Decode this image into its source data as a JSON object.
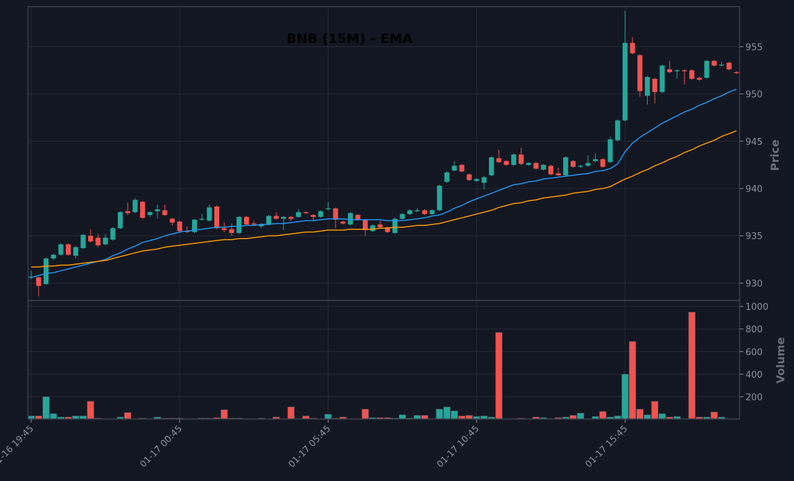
{
  "chart_data": [
    {
      "type": "candlestick",
      "title": "BNB (15M) - EMA",
      "ylabel": "Price",
      "up_color": "#26a69a",
      "down_color": "#ef5350",
      "grid": true,
      "x": [
        "01-16 19:45",
        "01-16 20:00",
        "01-16 20:15",
        "01-16 20:30",
        "01-16 20:45",
        "01-16 21:00",
        "01-16 21:15",
        "01-16 21:30",
        "01-16 21:45",
        "01-16 22:00",
        "01-16 22:15",
        "01-16 22:30",
        "01-16 22:45",
        "01-16 23:00",
        "01-16 23:15",
        "01-16 23:30",
        "01-16 23:45",
        "01-17 00:00",
        "01-17 00:15",
        "01-17 00:30",
        "01-17 00:45",
        "01-17 01:00",
        "01-17 01:15",
        "01-17 01:30",
        "01-17 01:45",
        "01-17 02:00",
        "01-17 02:15",
        "01-17 02:30",
        "01-17 02:45",
        "01-17 03:00",
        "01-17 03:15",
        "01-17 03:30",
        "01-17 03:45",
        "01-17 04:00",
        "01-17 04:15",
        "01-17 04:30",
        "01-17 04:45",
        "01-17 05:00",
        "01-17 05:15",
        "01-17 05:30",
        "01-17 05:45",
        "01-17 06:00",
        "01-17 06:15",
        "01-17 06:30",
        "01-17 06:45",
        "01-17 07:00",
        "01-17 07:15",
        "01-17 07:30",
        "01-17 07:45",
        "01-17 08:00",
        "01-17 08:15",
        "01-17 08:30",
        "01-17 08:45",
        "01-17 09:00",
        "01-17 09:15",
        "01-17 09:30",
        "01-17 09:45",
        "01-17 10:00",
        "01-17 10:15",
        "01-17 10:30",
        "01-17 10:45",
        "01-17 11:00",
        "01-17 11:15",
        "01-17 11:30",
        "01-17 11:45",
        "01-17 12:00",
        "01-17 12:15",
        "01-17 12:30",
        "01-17 12:45",
        "01-17 13:00",
        "01-17 13:15",
        "01-17 13:30",
        "01-17 13:45",
        "01-17 14:00",
        "01-17 14:15",
        "01-17 14:30",
        "01-17 14:45",
        "01-17 15:00",
        "01-17 15:15",
        "01-17 15:30",
        "01-17 15:45",
        "01-17 16:00",
        "01-17 16:15",
        "01-17 16:30",
        "01-17 16:45",
        "01-17 17:00",
        "01-17 17:15",
        "01-17 17:30",
        "01-17 17:45",
        "01-17 18:00",
        "01-17 18:15",
        "01-17 18:30",
        "01-17 18:45",
        "01-17 19:00",
        "01-17 19:15",
        "01-17 19:30"
      ],
      "open": [
        930.6,
        930.6,
        929.9,
        932.6,
        933.0,
        934.1,
        932.9,
        933.7,
        935.0,
        934.8,
        934.1,
        934.6,
        935.8,
        937.6,
        937.5,
        938.6,
        937.2,
        937.6,
        937.7,
        936.8,
        936.5,
        935.5,
        935.4,
        936.7,
        936.6,
        938.1,
        935.8,
        935.7,
        935.3,
        937.0,
        936.3,
        936.0,
        936.2,
        937.1,
        936.8,
        937.0,
        937.0,
        937.5,
        937.2,
        937.0,
        937.8,
        937.9,
        936.5,
        936.2,
        937.2,
        936.7,
        935.5,
        936.2,
        935.9,
        935.3,
        936.8,
        937.3,
        937.6,
        937.7,
        937.3,
        937.7,
        940.7,
        941.9,
        942.5,
        941.5,
        940.8,
        940.6,
        941.4,
        943.2,
        942.9,
        942.5,
        943.6,
        942.5,
        942.7,
        942.0,
        942.4,
        941.6,
        941.4,
        942.9,
        942.3,
        942.4,
        942.9,
        943.1,
        942.8,
        945.1,
        947.2,
        955.4,
        954.1,
        949.8,
        951.6,
        950.2,
        952.6,
        952.4,
        952.5,
        952.5,
        951.7,
        951.7,
        953.5,
        953.0,
        953.3,
        952.3
      ],
      "high": [
        931.3,
        930.7,
        932.7,
        933.1,
        934.2,
        934.2,
        933.9,
        935.2,
        935.7,
        935.2,
        935.2,
        935.9,
        937.6,
        938.5,
        939.0,
        938.7,
        937.6,
        938.3,
        938.3,
        936.9,
        936.6,
        936.0,
        936.8,
        937.3,
        938.3,
        938.2,
        936.4,
        936.3,
        937.1,
        937.1,
        936.6,
        936.3,
        937.2,
        937.5,
        937.1,
        937.1,
        937.8,
        937.6,
        937.3,
        937.7,
        938.6,
        938.0,
        936.6,
        937.5,
        937.3,
        936.8,
        936.2,
        936.6,
        936.0,
        936.9,
        937.4,
        937.8,
        937.9,
        937.8,
        937.8,
        940.4,
        941.8,
        942.9,
        942.6,
        941.6,
        941.1,
        941.3,
        943.4,
        944.1,
        943.0,
        943.7,
        944.3,
        942.8,
        942.8,
        942.6,
        942.5,
        942.2,
        943.4,
        943.0,
        942.5,
        943.5,
        943.7,
        943.2,
        945.5,
        947.3,
        958.8,
        956.0,
        954.2,
        951.9,
        951.7,
        953.1,
        953.5,
        952.6,
        952.6,
        952.6,
        951.8,
        953.6,
        953.6,
        953.4,
        953.4,
        952.4
      ],
      "low": [
        930.4,
        928.6,
        929.8,
        932.4,
        932.9,
        932.9,
        932.6,
        933.6,
        934.3,
        933.8,
        934.0,
        934.5,
        935.7,
        937.2,
        937.4,
        936.8,
        937.0,
        936.8,
        937.1,
        936.1,
        935.4,
        935.3,
        935.3,
        936.6,
        936.5,
        935.7,
        935.4,
        935.0,
        935.2,
        936.1,
        936.1,
        935.8,
        936.1,
        936.7,
        935.6,
        936.6,
        936.9,
        937.3,
        936.6,
        936.9,
        937.7,
        935.8,
        936.2,
        936.1,
        936.6,
        935.0,
        935.4,
        935.8,
        935.3,
        935.2,
        936.7,
        937.2,
        937.5,
        937.2,
        937.2,
        937.6,
        940.6,
        941.8,
        941.7,
        940.8,
        940.7,
        939.9,
        941.3,
        942.7,
        942.4,
        942.4,
        942.5,
        942.4,
        942.0,
        941.9,
        941.4,
        941.3,
        941.3,
        942.2,
        942.2,
        942.3,
        942.8,
        942.2,
        942.7,
        945.0,
        947.1,
        954.2,
        949.7,
        948.9,
        949.0,
        950.1,
        952.2,
        951.6,
        951.0,
        951.5,
        951.4,
        951.6,
        952.9,
        952.9,
        952.5,
        952.1
      ],
      "close": [
        930.7,
        929.7,
        932.6,
        933.0,
        934.1,
        933.0,
        933.8,
        935.1,
        934.4,
        934.0,
        934.8,
        935.8,
        937.5,
        937.4,
        938.8,
        936.9,
        937.5,
        937.8,
        937.2,
        936.4,
        935.5,
        935.4,
        936.7,
        936.8,
        938.0,
        935.8,
        935.6,
        935.3,
        937.0,
        936.2,
        936.2,
        936.2,
        937.1,
        936.8,
        937.0,
        936.8,
        937.5,
        937.4,
        937.0,
        937.6,
        937.9,
        936.7,
        936.3,
        937.4,
        936.7,
        935.6,
        936.1,
        935.9,
        935.4,
        936.8,
        937.3,
        937.7,
        937.7,
        937.3,
        937.7,
        940.3,
        941.7,
        942.4,
        941.8,
        940.9,
        941.0,
        941.2,
        943.3,
        942.8,
        942.5,
        943.6,
        942.6,
        942.7,
        942.1,
        942.5,
        941.5,
        941.4,
        943.3,
        942.3,
        942.4,
        942.7,
        943.1,
        942.3,
        945.2,
        947.2,
        955.4,
        954.3,
        950.3,
        951.8,
        950.2,
        953.0,
        952.3,
        952.5,
        952.4,
        951.6,
        951.5,
        953.5,
        953.0,
        953.1,
        952.6,
        952.2
      ],
      "series": [
        {
          "color": "#2196f3",
          "values": [
            930.6,
            930.8,
            931.0,
            931.1,
            931.3,
            931.5,
            931.7,
            931.9,
            932.1,
            932.3,
            932.5,
            932.9,
            933.2,
            933.6,
            933.9,
            934.3,
            934.5,
            934.7,
            935.0,
            935.2,
            935.4,
            935.5,
            935.6,
            935.7,
            935.8,
            935.9,
            935.9,
            936.0,
            936.0,
            936.1,
            936.1,
            936.2,
            936.2,
            936.3,
            936.3,
            936.4,
            936.5,
            936.6,
            936.6,
            936.7,
            936.8,
            936.8,
            936.8,
            936.7,
            936.7,
            936.7,
            936.7,
            936.7,
            936.6,
            936.6,
            936.6,
            936.7,
            936.8,
            936.9,
            937.1,
            937.2,
            937.5,
            937.9,
            938.2,
            938.6,
            938.9,
            939.2,
            939.5,
            939.8,
            940.1,
            940.4,
            940.5,
            940.7,
            940.8,
            941.0,
            941.1,
            941.2,
            941.3,
            941.4,
            941.5,
            941.6,
            941.8,
            941.9,
            942.1,
            942.6,
            943.9,
            944.8,
            945.4,
            945.9,
            946.4,
            946.9,
            947.3,
            947.7,
            948.1,
            948.4,
            948.8,
            949.1,
            949.5,
            949.8,
            950.2,
            950.5
          ]
        },
        {
          "color": "#ff9800",
          "values": [
            931.7,
            931.7,
            931.8,
            931.8,
            931.9,
            931.9,
            932.0,
            932.1,
            932.2,
            932.3,
            932.4,
            932.6,
            932.8,
            933.0,
            933.2,
            933.4,
            933.5,
            933.6,
            933.8,
            933.9,
            934.0,
            934.1,
            934.2,
            934.3,
            934.4,
            934.5,
            934.6,
            934.6,
            934.7,
            934.7,
            934.8,
            934.9,
            935.0,
            935.0,
            935.1,
            935.2,
            935.3,
            935.4,
            935.4,
            935.5,
            935.6,
            935.6,
            935.6,
            935.7,
            935.7,
            935.7,
            935.7,
            935.8,
            935.8,
            935.9,
            935.9,
            936.0,
            936.1,
            936.1,
            936.2,
            936.3,
            936.5,
            936.7,
            936.9,
            937.1,
            937.3,
            937.5,
            937.7,
            938.0,
            938.2,
            938.4,
            938.5,
            938.7,
            938.8,
            939.0,
            939.1,
            939.2,
            939.3,
            939.5,
            939.6,
            939.7,
            939.9,
            940.0,
            940.2,
            940.6,
            941.0,
            941.3,
            941.7,
            942.0,
            942.4,
            942.7,
            943.1,
            943.4,
            943.8,
            944.1,
            944.5,
            944.8,
            945.1,
            945.5,
            945.8,
            946.1
          ]
        }
      ],
      "ylim": [
        928.2,
        959.2
      ],
      "yticks": [
        930,
        935,
        940,
        945,
        950,
        955
      ]
    },
    {
      "type": "bar",
      "ylabel": "Volume",
      "grid": true,
      "values": [
        30,
        30,
        200,
        50,
        20,
        20,
        30,
        30,
        160,
        10,
        5,
        5,
        20,
        60,
        5,
        10,
        5,
        20,
        10,
        10,
        10,
        5,
        5,
        10,
        10,
        15,
        85,
        10,
        10,
        3,
        3,
        10,
        3,
        20,
        3,
        110,
        3,
        30,
        10,
        3,
        45,
        10,
        20,
        5,
        5,
        90,
        15,
        15,
        15,
        10,
        40,
        10,
        35,
        35,
        5,
        90,
        110,
        75,
        30,
        35,
        25,
        30,
        20,
        770,
        5,
        5,
        10,
        5,
        20,
        15,
        5,
        15,
        20,
        35,
        55,
        5,
        25,
        70,
        20,
        30,
        400,
        690,
        90,
        40,
        160,
        50,
        20,
        25,
        5,
        950,
        20,
        20,
        65,
        20,
        5,
        5
      ],
      "ylim": [
        0,
        1050
      ],
      "yticks": [
        200,
        400,
        600,
        800,
        1000
      ],
      "xticks": [
        "01-16 19:45",
        "01-17 00:45",
        "01-17 05:45",
        "01-17 10:45",
        "01-17 15:45"
      ]
    }
  ]
}
